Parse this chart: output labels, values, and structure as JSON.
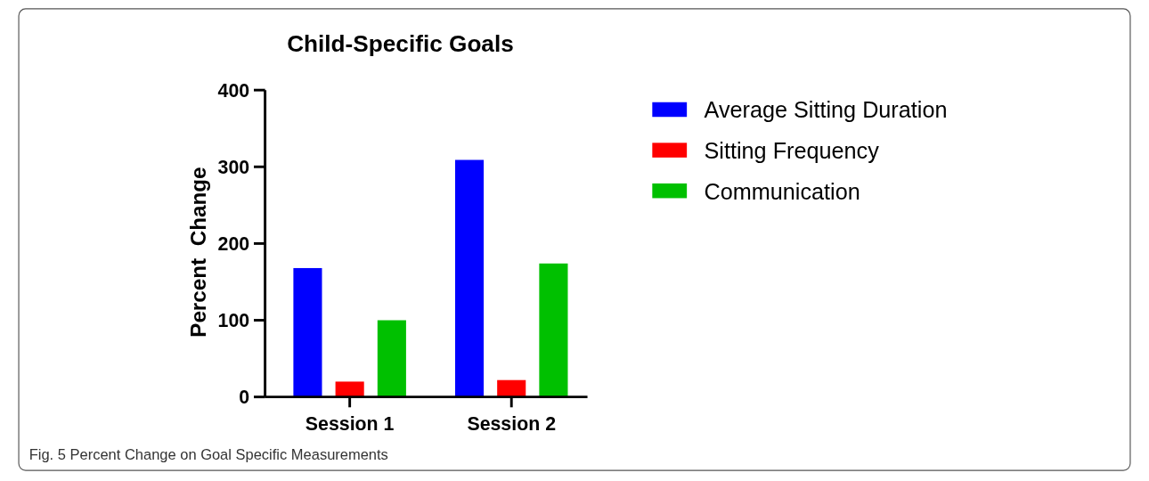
{
  "chart_data": {
    "type": "bar",
    "title": "Child-Specific Goals",
    "ylabel": "Percent  Change",
    "categories": [
      "Session 1",
      "Session 2"
    ],
    "series": [
      {
        "name": "Average Sitting Duration",
        "color": "#0000ff",
        "values": [
          168,
          309
        ]
      },
      {
        "name": "Sitting Frequency",
        "color": "#ff0000",
        "values": [
          20,
          22
        ]
      },
      {
        "name": "Communication",
        "color": "#00c000",
        "values": [
          100,
          174
        ]
      }
    ],
    "ylim": [
      0,
      400
    ],
    "yticks": [
      0,
      100,
      200,
      300,
      400
    ],
    "grid": false,
    "legend": "right",
    "annotations": [
      "Fig. 5 Percent Change on Goal Specific Measurements"
    ]
  }
}
